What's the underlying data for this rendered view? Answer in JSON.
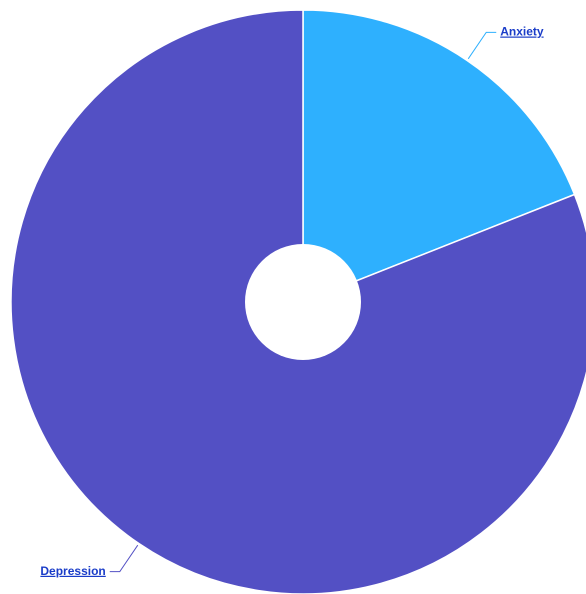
{
  "chart_data": {
    "type": "pie",
    "categories": [
      "Anxiety",
      "Depression"
    ],
    "values": [
      19,
      81
    ],
    "colors": [
      "#2eb0fe",
      "#5350c4"
    ],
    "donut": true
  }
}
